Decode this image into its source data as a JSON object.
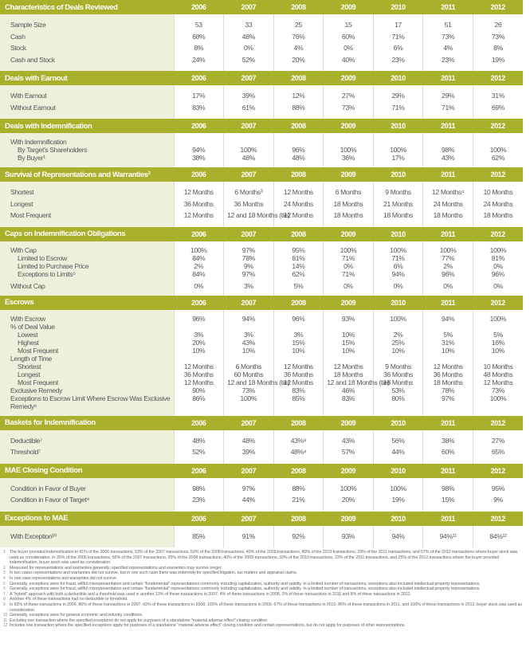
{
  "years": [
    "2006",
    "2007",
    "2008",
    "2009",
    "2010",
    "2011",
    "2012"
  ],
  "sections": [
    {
      "title": "Characteristics of Deals Reviewed",
      "rows": [
        {
          "label": "Sample Size",
          "values": [
            "53",
            "33",
            "25",
            "15",
            "17",
            "51",
            "26"
          ]
        },
        {
          "label": "Cash",
          "values": [
            "68%",
            "48%",
            "76%",
            "60%",
            "71%",
            "73%",
            "73%"
          ]
        },
        {
          "label": "Stock",
          "values": [
            "8%",
            "0%",
            "4%",
            "0%",
            "6%",
            "4%",
            "8%"
          ]
        },
        {
          "label": "Cash and Stock",
          "values": [
            "24%",
            "52%",
            "20%",
            "40%",
            "23%",
            "23%",
            "19%"
          ]
        }
      ]
    },
    {
      "title": "Deals with Earnout",
      "rows": [
        {
          "label": "With Earnout",
          "values": [
            "17%",
            "39%",
            "12%",
            "27%",
            "29%",
            "29%",
            "31%"
          ]
        },
        {
          "label": "Without Earnout",
          "values": [
            "83%",
            "61%",
            "88%",
            "73%",
            "71%",
            "71%",
            "69%"
          ]
        }
      ]
    },
    {
      "title": "Deals with Indemnification",
      "rows": [
        {
          "label": "With Indemnification",
          "values": [
            "",
            "",
            "",
            "",
            "",
            "",
            ""
          ]
        },
        {
          "label": "By Target's Shareholders",
          "indent": 1,
          "values": [
            "94%",
            "100%",
            "96%",
            "100%",
            "100%",
            "98%",
            "100%"
          ]
        },
        {
          "label": "By Buyer¹",
          "indent": 1,
          "values": [
            "38%",
            "48%",
            "48%",
            "36%",
            "17%",
            "43%",
            "62%"
          ]
        }
      ]
    },
    {
      "title": "Survival of Representations and Warranties²",
      "rows": [
        {
          "label": "Shortest",
          "values": [
            "12 Months",
            "6 Months³",
            "12 Months",
            "6 Months",
            "9 Months",
            "12 Months⁴",
            "10 Months"
          ]
        },
        {
          "label": "Longest",
          "values": [
            "36 Months",
            "36 Months",
            "24 Months",
            "18 Months",
            "21 Months",
            "24 Months",
            "24 Months"
          ]
        },
        {
          "label": "Most Frequent",
          "values": [
            "12 Months",
            "12 and 18 Months (tie)",
            "12 Months",
            "18 Months",
            "18 Months",
            "18 Months",
            "18 Months"
          ]
        }
      ]
    },
    {
      "title": "Caps on Indemnification Obligations",
      "rows": [
        {
          "label": "With Cap",
          "values": [
            "100%",
            "97%",
            "95%",
            "100%",
            "100%",
            "100%",
            "100%"
          ]
        },
        {
          "label": "Limited to Escrow",
          "indent": 1,
          "values": [
            "84%",
            "78%",
            "81%",
            "71%",
            "71%",
            "77%",
            "81%"
          ]
        },
        {
          "label": "Limited to Purchase Price",
          "indent": 1,
          "values": [
            "2%",
            "9%",
            "14%",
            "0%",
            "6%",
            "2%",
            "0%"
          ]
        },
        {
          "label": "Exceptions to Limits⁵",
          "indent": 1,
          "values": [
            "84%",
            "97%",
            "62%",
            "71%",
            "94%",
            "96%",
            "96%"
          ]
        },
        {
          "label": "Without Cap",
          "gap": true,
          "values": [
            "0%",
            "3%",
            "5%",
            "0%",
            "0%",
            "0%",
            "0%"
          ]
        }
      ]
    },
    {
      "title": "Escrows",
      "rows": [
        {
          "label": "With Escrow",
          "values": [
            "96%",
            "94%",
            "96%",
            "93%",
            "100%",
            "94%",
            "100%"
          ]
        },
        {
          "label": "% of Deal Value",
          "values": [
            "",
            "",
            "",
            "",
            "",
            "",
            ""
          ]
        },
        {
          "label": "Lowest",
          "indent": 1,
          "values": [
            "3%",
            "3%",
            "3%",
            "10%",
            "2%",
            "5%",
            "5%"
          ]
        },
        {
          "label": "Highest",
          "indent": 1,
          "values": [
            "20%",
            "43%",
            "15%",
            "15%",
            "25%",
            "31%",
            "16%"
          ]
        },
        {
          "label": "Most Frequent",
          "indent": 1,
          "values": [
            "10%",
            "10%",
            "10%",
            "10%",
            "10%",
            "10%",
            "10%"
          ]
        },
        {
          "label": "Length of Time",
          "values": [
            "",
            "",
            "",
            "",
            "",
            "",
            ""
          ]
        },
        {
          "label": "Shortest",
          "indent": 1,
          "values": [
            "12 Months",
            "6 Months",
            "12 Months",
            "12 Months",
            "9 Months",
            "12 Months",
            "10 Months"
          ]
        },
        {
          "label": "Longest",
          "indent": 1,
          "values": [
            "36 Months",
            "60 Months",
            "36 Months",
            "18 Months",
            "36 Months",
            "36 Months",
            "48 Months"
          ]
        },
        {
          "label": "Most Frequent",
          "indent": 1,
          "values": [
            "12 Months",
            "12 and 18 Months (tie)",
            "12 Months",
            "12 and 18 Months (tie)",
            "18 Months",
            "18 Months",
            "12 Months"
          ]
        },
        {
          "label": "Exclusive Remedy",
          "values": [
            "90%",
            "73%",
            "83%",
            "46%",
            "53%",
            "78%",
            "73%"
          ]
        },
        {
          "label": "Exceptions to Escrow Limit Where Escrow Was Exclusive Remedy⁶",
          "wrap": true,
          "values": [
            "86%",
            "100%",
            "85%",
            "83%",
            "80%",
            "97%",
            "100%"
          ]
        }
      ]
    },
    {
      "title": "Baskets for Indemnification",
      "rows": [
        {
          "label": "Deductible⁷",
          "values": [
            "48%",
            "48%",
            "43%⁸",
            "43%",
            "56%",
            "38%",
            "27%"
          ]
        },
        {
          "label": "Threshold⁷",
          "values": [
            "52%",
            "39%",
            "48%⁸",
            "57%",
            "44%",
            "60%",
            "65%"
          ]
        }
      ]
    },
    {
      "title": "MAE Closing Condition",
      "rows": [
        {
          "label": "Condition in Favor of Buyer",
          "values": [
            "98%",
            "97%",
            "88%",
            "100%",
            "100%",
            "98%",
            "95%"
          ]
        },
        {
          "label": "Condition in Favor of Target⁹",
          "values": [
            "23%",
            "44%",
            "21%",
            "20%",
            "19%",
            "15%",
            "9%"
          ]
        }
      ]
    },
    {
      "title": "Exceptions to MAE",
      "rows": [
        {
          "label": "With Exception¹⁰",
          "values": [
            "85%",
            "91%",
            "92%",
            "93%",
            "94%",
            "94%¹¹",
            "84%¹²"
          ]
        }
      ]
    }
  ],
  "footnotes": [
    {
      "n": "1",
      "text": "The buyer provided indemnification in 41% of the 2006 transactions, 53% of the 2007 transactions, 50% of the 2008 transactions, 40% of the 2009 transactions, 80% of the 2010 transactions, 29% of the 2011 transactions, and 57% of the 2012 transactions where buyer stock was used as consideration. In 35% of the 2006 transactions, 56% of the 2007 transactions, 25% of the 2008 transactions, 40% of the 2009 transactions, 33% of the 2010 transactions, 23% of the 2011 transactions, and 25% of the 2012 transactions where the buyer provided indemnification, buyer stock was used as consideration."
    },
    {
      "n": "2",
      "text": "Measured for representations and warranties generally; specified representations and warranties may survive longer."
    },
    {
      "n": "3",
      "text": "In two cases representations and warranties did not survive, but in one such case there was indemnity for specified litigation, tax matters and appraisal claims."
    },
    {
      "n": "4",
      "text": "In one case representations and warranties did not survive."
    },
    {
      "n": "5",
      "text": "Generally, exceptions were for fraud, willful misrepresentation and certain \"fundamental\" representations commonly including capitalization, authority and validity. In a limited number of transactions, exceptions also included intellectual property representations."
    },
    {
      "n": "6",
      "text": "Generally, exceptions were for fraud, willful misrepresentation and certain \"fundamental\" representations commonly including capitalization, authority and validity. In a limited number of transactions, exceptions also included intellectual property representations."
    },
    {
      "n": "7",
      "text": "A \"hybrid\" approach with both a deductible and a threshold was used in another 13% of these transactions in 2007, 4% of these transactions in 2008, 2% of these transactions in 2011 and 8% of these transactions in 2012."
    },
    {
      "n": "8",
      "text": "Another 4% of these transactions had no deductible or threshold."
    },
    {
      "n": "9",
      "text": "In 83% of these transactions in 2006, 86% of these transactions in 2007, 60% of these transactions in 2008, 100% of these transactions in 2009, 67% of these transactions in 2010, 86% of these transactions in 2011, and 100% of these transactions in 2012, buyer stock was used as consideration."
    },
    {
      "n": "10",
      "text": "Generally, exceptions were for general economic and industry conditions."
    },
    {
      "n": "11",
      "text": "Excludes one transaction where the specified exceptions do not apply for purposes of a standalone \"material adverse effect\" closing condition."
    },
    {
      "n": "12",
      "text": "Includes one transaction where the specified exceptions apply for purposes of a standalone \"material adverse effect\" closing condition and certain representations, but do not apply for purposes of other representations."
    }
  ]
}
